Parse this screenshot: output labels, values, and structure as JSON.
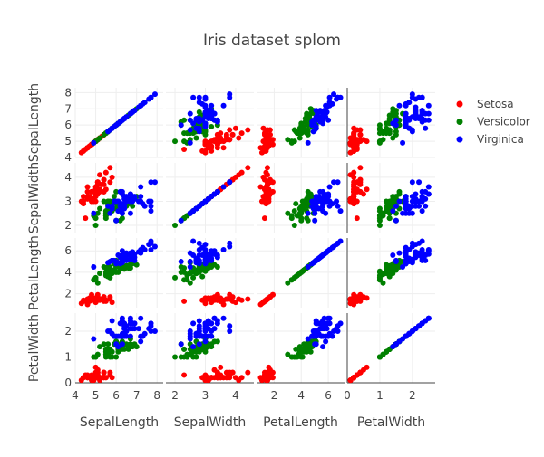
{
  "chart_data": {
    "type": "scatter",
    "title": "Iris dataset splom",
    "dimensions": [
      {
        "label": "SepalLength",
        "range": [
          4,
          8.3
        ],
        "ticks": [
          4,
          5,
          6,
          7,
          8
        ]
      },
      {
        "label": "SepalWidth",
        "range": [
          1.7,
          4.6
        ],
        "ticks": [
          2,
          3,
          4
        ]
      },
      {
        "label": "PetalLength",
        "range": [
          0.7,
          7.2
        ],
        "ticks": [
          2,
          4,
          6
        ]
      },
      {
        "label": "PetalWidth",
        "range": [
          0,
          2.7
        ],
        "ticks": [
          0,
          1,
          2
        ]
      }
    ],
    "diagonal_visible": true,
    "grid": true,
    "legend_position": "top-right",
    "series": [
      {
        "name": "Setosa",
        "color": "#ff0000",
        "points": [
          [
            5.1,
            3.5,
            1.4,
            0.2
          ],
          [
            4.9,
            3.0,
            1.4,
            0.2
          ],
          [
            4.7,
            3.2,
            1.3,
            0.2
          ],
          [
            4.6,
            3.1,
            1.5,
            0.2
          ],
          [
            5.0,
            3.6,
            1.4,
            0.2
          ],
          [
            5.4,
            3.9,
            1.7,
            0.4
          ],
          [
            4.6,
            3.4,
            1.4,
            0.3
          ],
          [
            5.0,
            3.4,
            1.5,
            0.2
          ],
          [
            4.4,
            2.9,
            1.4,
            0.2
          ],
          [
            4.9,
            3.1,
            1.5,
            0.1
          ],
          [
            5.4,
            3.7,
            1.5,
            0.2
          ],
          [
            4.8,
            3.4,
            1.6,
            0.2
          ],
          [
            4.8,
            3.0,
            1.4,
            0.1
          ],
          [
            4.3,
            3.0,
            1.1,
            0.1
          ],
          [
            5.8,
            4.0,
            1.2,
            0.2
          ],
          [
            5.7,
            4.4,
            1.5,
            0.4
          ],
          [
            5.4,
            3.9,
            1.3,
            0.4
          ],
          [
            5.1,
            3.5,
            1.4,
            0.3
          ],
          [
            5.7,
            3.8,
            1.7,
            0.3
          ],
          [
            5.1,
            3.8,
            1.5,
            0.3
          ],
          [
            5.4,
            3.4,
            1.7,
            0.2
          ],
          [
            5.1,
            3.7,
            1.5,
            0.4
          ],
          [
            4.6,
            3.6,
            1.0,
            0.2
          ],
          [
            5.1,
            3.3,
            1.7,
            0.5
          ],
          [
            4.8,
            3.4,
            1.9,
            0.2
          ],
          [
            5.0,
            3.0,
            1.6,
            0.2
          ],
          [
            5.0,
            3.4,
            1.6,
            0.4
          ],
          [
            5.2,
            3.5,
            1.5,
            0.2
          ],
          [
            5.2,
            3.4,
            1.4,
            0.2
          ],
          [
            4.7,
            3.2,
            1.6,
            0.2
          ],
          [
            4.8,
            3.1,
            1.6,
            0.2
          ],
          [
            5.4,
            3.4,
            1.5,
            0.4
          ],
          [
            5.2,
            4.1,
            1.5,
            0.1
          ],
          [
            5.5,
            4.2,
            1.4,
            0.2
          ],
          [
            4.9,
            3.1,
            1.5,
            0.1
          ],
          [
            5.0,
            3.2,
            1.2,
            0.2
          ],
          [
            5.5,
            3.5,
            1.3,
            0.2
          ],
          [
            4.9,
            3.1,
            1.5,
            0.1
          ],
          [
            4.4,
            3.0,
            1.3,
            0.2
          ],
          [
            5.1,
            3.4,
            1.5,
            0.2
          ],
          [
            5.0,
            3.5,
            1.3,
            0.3
          ],
          [
            4.5,
            2.3,
            1.3,
            0.3
          ],
          [
            4.4,
            3.2,
            1.3,
            0.2
          ],
          [
            5.0,
            3.5,
            1.6,
            0.6
          ],
          [
            5.1,
            3.8,
            1.9,
            0.4
          ],
          [
            4.8,
            3.0,
            1.4,
            0.3
          ],
          [
            5.1,
            3.8,
            1.6,
            0.2
          ],
          [
            4.6,
            3.2,
            1.4,
            0.2
          ],
          [
            5.3,
            3.7,
            1.5,
            0.2
          ],
          [
            5.0,
            3.3,
            1.4,
            0.2
          ]
        ]
      },
      {
        "name": "Versicolor",
        "color": "#008000",
        "points": [
          [
            7.0,
            3.2,
            4.7,
            1.4
          ],
          [
            6.4,
            3.2,
            4.5,
            1.5
          ],
          [
            6.9,
            3.1,
            4.9,
            1.5
          ],
          [
            5.5,
            2.3,
            4.0,
            1.3
          ],
          [
            6.5,
            2.8,
            4.6,
            1.5
          ],
          [
            5.7,
            2.8,
            4.5,
            1.3
          ],
          [
            6.3,
            3.3,
            4.7,
            1.6
          ],
          [
            4.9,
            2.4,
            3.3,
            1.0
          ],
          [
            6.6,
            2.9,
            4.6,
            1.3
          ],
          [
            5.2,
            2.7,
            3.9,
            1.4
          ],
          [
            5.0,
            2.0,
            3.5,
            1.0
          ],
          [
            5.9,
            3.0,
            4.2,
            1.5
          ],
          [
            6.0,
            2.2,
            4.0,
            1.0
          ],
          [
            6.1,
            2.9,
            4.7,
            1.4
          ],
          [
            5.6,
            2.9,
            3.6,
            1.3
          ],
          [
            6.7,
            3.1,
            4.4,
            1.4
          ],
          [
            5.6,
            3.0,
            4.5,
            1.5
          ],
          [
            5.8,
            2.7,
            4.1,
            1.0
          ],
          [
            6.2,
            2.2,
            4.5,
            1.5
          ],
          [
            5.6,
            2.5,
            3.9,
            1.1
          ],
          [
            5.9,
            3.2,
            4.8,
            1.8
          ],
          [
            6.1,
            2.8,
            4.0,
            1.3
          ],
          [
            6.3,
            2.5,
            4.9,
            1.5
          ],
          [
            6.1,
            2.8,
            4.7,
            1.2
          ],
          [
            6.4,
            2.9,
            4.3,
            1.3
          ],
          [
            6.6,
            3.0,
            4.4,
            1.4
          ],
          [
            6.8,
            2.8,
            4.8,
            1.4
          ],
          [
            6.7,
            3.0,
            5.0,
            1.7
          ],
          [
            6.0,
            2.9,
            4.5,
            1.5
          ],
          [
            5.7,
            2.6,
            3.5,
            1.0
          ],
          [
            5.5,
            2.4,
            3.8,
            1.1
          ],
          [
            5.5,
            2.4,
            3.7,
            1.0
          ],
          [
            5.8,
            2.7,
            3.9,
            1.2
          ],
          [
            6.0,
            2.7,
            5.1,
            1.6
          ],
          [
            5.4,
            3.0,
            4.5,
            1.5
          ],
          [
            6.0,
            3.4,
            4.5,
            1.6
          ],
          [
            6.7,
            3.1,
            4.7,
            1.5
          ],
          [
            6.3,
            2.3,
            4.4,
            1.3
          ],
          [
            5.6,
            3.0,
            4.1,
            1.3
          ],
          [
            5.5,
            2.5,
            4.0,
            1.3
          ],
          [
            5.5,
            2.6,
            4.4,
            1.2
          ],
          [
            6.1,
            3.0,
            4.6,
            1.4
          ],
          [
            5.8,
            2.6,
            4.0,
            1.2
          ],
          [
            5.0,
            2.3,
            3.3,
            1.0
          ],
          [
            5.6,
            2.7,
            4.2,
            1.3
          ],
          [
            5.7,
            3.0,
            4.2,
            1.2
          ],
          [
            5.7,
            2.9,
            4.2,
            1.3
          ],
          [
            6.2,
            2.9,
            4.3,
            1.3
          ],
          [
            5.1,
            2.5,
            3.0,
            1.1
          ],
          [
            5.7,
            2.8,
            4.1,
            1.3
          ]
        ]
      },
      {
        "name": "Virginica",
        "color": "#0000ff",
        "points": [
          [
            6.3,
            3.3,
            6.0,
            2.5
          ],
          [
            5.8,
            2.7,
            5.1,
            1.9
          ],
          [
            7.1,
            3.0,
            5.9,
            2.1
          ],
          [
            6.3,
            2.9,
            5.6,
            1.8
          ],
          [
            6.5,
            3.0,
            5.8,
            2.2
          ],
          [
            7.6,
            3.0,
            6.6,
            2.1
          ],
          [
            4.9,
            2.5,
            4.5,
            1.7
          ],
          [
            7.3,
            2.9,
            6.3,
            1.8
          ],
          [
            6.7,
            2.5,
            5.8,
            1.8
          ],
          [
            7.2,
            3.6,
            6.1,
            2.5
          ],
          [
            6.5,
            3.2,
            5.1,
            2.0
          ],
          [
            6.4,
            2.7,
            5.3,
            1.9
          ],
          [
            6.8,
            3.0,
            5.5,
            2.1
          ],
          [
            5.7,
            2.5,
            5.0,
            2.0
          ],
          [
            5.8,
            2.8,
            5.1,
            2.4
          ],
          [
            6.4,
            3.2,
            5.3,
            2.3
          ],
          [
            6.5,
            3.0,
            5.5,
            1.8
          ],
          [
            7.7,
            3.8,
            6.7,
            2.2
          ],
          [
            7.7,
            2.6,
            6.9,
            2.3
          ],
          [
            6.0,
            2.2,
            5.0,
            1.5
          ],
          [
            6.9,
            3.2,
            5.7,
            2.3
          ],
          [
            5.6,
            2.8,
            4.9,
            2.0
          ],
          [
            7.7,
            2.8,
            6.7,
            2.0
          ],
          [
            6.3,
            2.7,
            4.9,
            1.8
          ],
          [
            6.7,
            3.3,
            5.7,
            2.1
          ],
          [
            7.2,
            3.2,
            6.0,
            1.8
          ],
          [
            6.2,
            2.8,
            4.8,
            1.8
          ],
          [
            6.1,
            3.0,
            4.9,
            1.8
          ],
          [
            6.4,
            2.8,
            5.6,
            2.1
          ],
          [
            7.2,
            3.0,
            5.8,
            1.6
          ],
          [
            7.4,
            2.8,
            6.1,
            1.9
          ],
          [
            7.9,
            3.8,
            6.4,
            2.0
          ],
          [
            6.4,
            2.8,
            5.6,
            2.2
          ],
          [
            6.3,
            2.8,
            5.1,
            1.5
          ],
          [
            6.1,
            2.6,
            5.6,
            1.4
          ],
          [
            7.7,
            3.0,
            6.1,
            2.3
          ],
          [
            6.3,
            3.4,
            5.6,
            2.4
          ],
          [
            6.4,
            3.1,
            5.5,
            1.8
          ],
          [
            6.0,
            3.0,
            4.8,
            1.8
          ],
          [
            6.9,
            3.1,
            5.4,
            2.1
          ],
          [
            6.7,
            3.1,
            5.6,
            2.4
          ],
          [
            6.9,
            3.1,
            5.1,
            2.3
          ],
          [
            5.8,
            2.7,
            5.1,
            1.9
          ],
          [
            6.8,
            3.2,
            5.9,
            2.3
          ],
          [
            6.7,
            3.3,
            5.7,
            2.5
          ],
          [
            6.7,
            3.0,
            5.2,
            2.3
          ],
          [
            6.3,
            2.5,
            5.0,
            1.9
          ],
          [
            6.5,
            3.0,
            5.2,
            2.0
          ],
          [
            6.2,
            3.4,
            5.4,
            2.3
          ],
          [
            5.9,
            3.0,
            5.1,
            1.8
          ]
        ]
      }
    ]
  }
}
